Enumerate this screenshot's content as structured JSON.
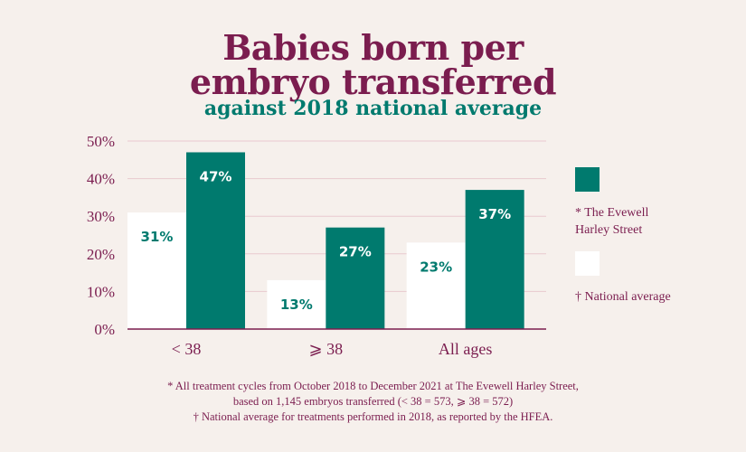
{
  "title_line1": "Babies born per",
  "title_line2": "embryo transferred",
  "subtitle": "against 2018 national average",
  "chart_data": {
    "type": "bar",
    "categories": [
      "< 38",
      "⩾ 38",
      "All ages"
    ],
    "series": [
      {
        "name": "National average",
        "values": [
          31,
          13,
          23
        ],
        "color": "#ffffff",
        "label_color": "#007a6e"
      },
      {
        "name": "The Evewell Harley Street",
        "values": [
          47,
          27,
          37
        ],
        "color": "#007a6e",
        "label_color": "#ffffff"
      }
    ],
    "data_labels": [
      [
        "31%",
        "13%",
        "23%"
      ],
      [
        "47%",
        "27%",
        "37%"
      ]
    ],
    "yticks": [
      "0%",
      "10%",
      "20%",
      "30%",
      "40%",
      "50%"
    ],
    "ylim": [
      0,
      50
    ],
    "grid": true,
    "legend_position": "right"
  },
  "legend": {
    "evewell_line1": "* The Evewell",
    "evewell_line2": "Harley Street",
    "national": "†  National average"
  },
  "footnotes": {
    "line1": "* All treatment cycles from October 2018 to December 2021 at The Evewell Harley Street,",
    "line2": "based on 1,145 embryos transferred (< 38 = 573, ⩾ 38 = 572)",
    "line3": "† National average for treatments performed in 2018, as reported by the HFEA."
  },
  "colors": {
    "background": "#f6f0ec",
    "plum": "#7b1d4f",
    "teal": "#007a6e",
    "grid": "#e9c9cf"
  }
}
